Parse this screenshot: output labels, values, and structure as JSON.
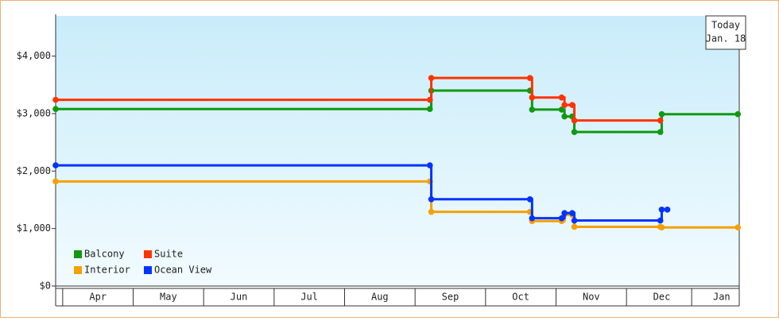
{
  "chart_data": {
    "type": "step-line",
    "xlim": [
      -0.1,
      9.6
    ],
    "ylim": [
      0,
      4700
    ],
    "xticks": [
      {
        "value": 0.5,
        "label": "Apr"
      },
      {
        "value": 1.5,
        "label": "May"
      },
      {
        "value": 2.5,
        "label": "Jun"
      },
      {
        "value": 3.5,
        "label": "Jul"
      },
      {
        "value": 4.5,
        "label": "Aug"
      },
      {
        "value": 5.5,
        "label": "Sep"
      },
      {
        "value": 6.5,
        "label": "Oct"
      },
      {
        "value": 7.5,
        "label": "Nov"
      },
      {
        "value": 8.5,
        "label": "Dec"
      },
      {
        "value": 9.35,
        "label": "Jan"
      }
    ],
    "yticks": [
      {
        "value": 0,
        "label": "$0"
      },
      {
        "value": 1000,
        "label": "$1,000"
      },
      {
        "value": 2000,
        "label": "$2,000"
      },
      {
        "value": 3000,
        "label": "$3,000"
      },
      {
        "value": 4000,
        "label": "$4,000"
      }
    ],
    "legend": "lower left",
    "annotation": {
      "title": "Today",
      "date": "Jan. 18"
    },
    "series": [
      {
        "name": "Balcony",
        "color": "#119911",
        "x": [
          -0.1,
          5.21,
          5.23,
          6.63,
          6.66,
          7.08,
          7.12,
          7.23,
          7.26,
          8.48,
          8.5,
          9.58
        ],
        "values": [
          3080,
          3080,
          3400,
          3400,
          3070,
          3070,
          2950,
          2950,
          2680,
          2680,
          2990,
          2990
        ]
      },
      {
        "name": "Suite",
        "color": "#ff3300",
        "x": [
          -0.1,
          5.21,
          5.23,
          6.63,
          6.66,
          7.08,
          7.12,
          7.23,
          7.26,
          8.48
        ],
        "values": [
          3240,
          3240,
          3620,
          3620,
          3280,
          3280,
          3150,
          3150,
          2880,
          2880
        ]
      },
      {
        "name": "Interior",
        "color": "#f5a000",
        "x": [
          -0.1,
          5.21,
          5.23,
          6.63,
          6.66,
          7.08,
          7.12,
          7.23,
          7.26,
          8.48,
          8.5,
          9.58
        ],
        "values": [
          1820,
          1820,
          1290,
          1290,
          1130,
          1130,
          1240,
          1240,
          1030,
          1030,
          1020,
          1020
        ]
      },
      {
        "name": "Ocean View",
        "color": "#0033ff",
        "x": [
          -0.1,
          5.21,
          5.23,
          6.63,
          6.66,
          7.08,
          7.12,
          7.23,
          7.26,
          8.48,
          8.5,
          8.58
        ],
        "values": [
          2100,
          2100,
          1510,
          1510,
          1180,
          1180,
          1270,
          1270,
          1140,
          1140,
          1330,
          1330
        ]
      }
    ]
  }
}
